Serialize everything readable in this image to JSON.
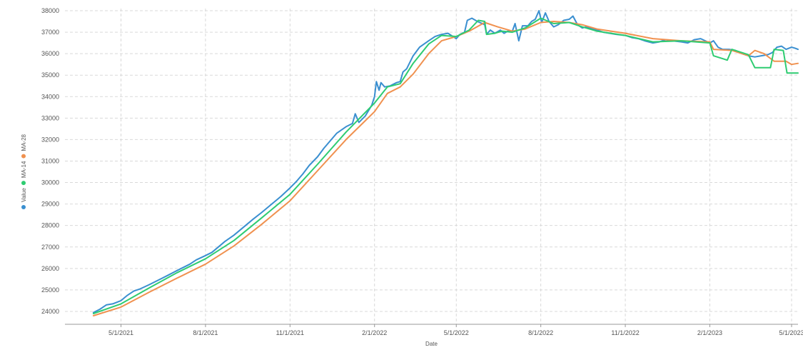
{
  "chart_data": {
    "type": "line",
    "title": "",
    "xlabel": "Date",
    "ylabel": "",
    "x_range": [
      "2021-03-01",
      "2023-05-08"
    ],
    "ylim": [
      23400,
      38100
    ],
    "grid": true,
    "legend_position": "left",
    "x_ticks": [
      {
        "date": "2021-05-01",
        "label": "5/1/2021"
      },
      {
        "date": "2021-08-01",
        "label": "8/1/2021"
      },
      {
        "date": "2021-11-01",
        "label": "11/1/2021"
      },
      {
        "date": "2022-02-01",
        "label": "2/1/2022"
      },
      {
        "date": "2022-05-01",
        "label": "5/1/2022"
      },
      {
        "date": "2022-08-01",
        "label": "8/1/2022"
      },
      {
        "date": "2022-11-01",
        "label": "11/1/2022"
      },
      {
        "date": "2023-02-01",
        "label": "2/1/2023"
      },
      {
        "date": "2023-05-01",
        "label": "5/1/2023"
      }
    ],
    "y_ticks": [
      {
        "value": 24000,
        "label": "24000"
      },
      {
        "value": 25000,
        "label": "25000"
      },
      {
        "value": 26000,
        "label": "26000"
      },
      {
        "value": 27000,
        "label": "27000"
      },
      {
        "value": 28000,
        "label": "28000"
      },
      {
        "value": 29000,
        "label": "29000"
      },
      {
        "value": 30000,
        "label": "30000"
      },
      {
        "value": 31000,
        "label": "31000"
      },
      {
        "value": 32000,
        "label": "32000"
      },
      {
        "value": 33000,
        "label": "33000"
      },
      {
        "value": 34000,
        "label": "34000"
      },
      {
        "value": 35000,
        "label": "35000"
      },
      {
        "value": 36000,
        "label": "36000"
      },
      {
        "value": 37000,
        "label": "37000"
      },
      {
        "value": 38000,
        "label": "38000"
      }
    ],
    "series": [
      {
        "name": "Value",
        "color": "#3a8fd0",
        "points": [
          [
            "2021-04-01",
            23950
          ],
          [
            "2021-04-08",
            24100
          ],
          [
            "2021-04-15",
            24300
          ],
          [
            "2021-04-22",
            24350
          ],
          [
            "2021-05-01",
            24500
          ],
          [
            "2021-05-08",
            24750
          ],
          [
            "2021-05-15",
            24950
          ],
          [
            "2021-05-22",
            25050
          ],
          [
            "2021-06-01",
            25250
          ],
          [
            "2021-06-08",
            25400
          ],
          [
            "2021-06-15",
            25550
          ],
          [
            "2021-06-22",
            25700
          ],
          [
            "2021-07-01",
            25900
          ],
          [
            "2021-07-08",
            26050
          ],
          [
            "2021-07-15",
            26200
          ],
          [
            "2021-07-22",
            26400
          ],
          [
            "2021-08-01",
            26600
          ],
          [
            "2021-08-08",
            26750
          ],
          [
            "2021-08-15",
            27000
          ],
          [
            "2021-08-22",
            27250
          ],
          [
            "2021-09-01",
            27550
          ],
          [
            "2021-09-08",
            27800
          ],
          [
            "2021-09-15",
            28050
          ],
          [
            "2021-09-22",
            28300
          ],
          [
            "2021-10-01",
            28600
          ],
          [
            "2021-10-08",
            28850
          ],
          [
            "2021-10-15",
            29100
          ],
          [
            "2021-10-22",
            29350
          ],
          [
            "2021-11-01",
            29750
          ],
          [
            "2021-11-08",
            30050
          ],
          [
            "2021-11-15",
            30400
          ],
          [
            "2021-11-22",
            30800
          ],
          [
            "2021-12-01",
            31200
          ],
          [
            "2021-12-08",
            31600
          ],
          [
            "2021-12-15",
            31950
          ],
          [
            "2021-12-22",
            32300
          ],
          [
            "2022-01-01",
            32600
          ],
          [
            "2022-01-08",
            32750
          ],
          [
            "2022-01-11",
            33200
          ],
          [
            "2022-01-15",
            32800
          ],
          [
            "2022-01-22",
            33100
          ],
          [
            "2022-01-29",
            33600
          ],
          [
            "2022-02-01",
            34000
          ],
          [
            "2022-02-03",
            34700
          ],
          [
            "2022-02-06",
            34300
          ],
          [
            "2022-02-08",
            34650
          ],
          [
            "2022-02-12",
            34450
          ],
          [
            "2022-02-18",
            34500
          ],
          [
            "2022-02-25",
            34650
          ],
          [
            "2022-03-01",
            34700
          ],
          [
            "2022-03-04",
            35150
          ],
          [
            "2022-03-08",
            35300
          ],
          [
            "2022-03-15",
            35900
          ],
          [
            "2022-03-22",
            36300
          ],
          [
            "2022-04-01",
            36600
          ],
          [
            "2022-04-08",
            36800
          ],
          [
            "2022-04-15",
            36900
          ],
          [
            "2022-04-22",
            36950
          ],
          [
            "2022-05-01",
            36700
          ],
          [
            "2022-05-05",
            36900
          ],
          [
            "2022-05-10",
            37000
          ],
          [
            "2022-05-13",
            37550
          ],
          [
            "2022-05-18",
            37650
          ],
          [
            "2022-05-24",
            37500
          ],
          [
            "2022-06-01",
            37350
          ],
          [
            "2022-06-03",
            36900
          ],
          [
            "2022-06-07",
            37100
          ],
          [
            "2022-06-12",
            36950
          ],
          [
            "2022-06-18",
            37100
          ],
          [
            "2022-06-22",
            36950
          ],
          [
            "2022-06-26",
            37050
          ],
          [
            "2022-07-01",
            37050
          ],
          [
            "2022-07-04",
            37400
          ],
          [
            "2022-07-08",
            36600
          ],
          [
            "2022-07-12",
            37300
          ],
          [
            "2022-07-18",
            37300
          ],
          [
            "2022-07-22",
            37500
          ],
          [
            "2022-07-26",
            37600
          ],
          [
            "2022-07-30",
            38000
          ],
          [
            "2022-08-02",
            37450
          ],
          [
            "2022-08-06",
            37900
          ],
          [
            "2022-08-10",
            37500
          ],
          [
            "2022-08-15",
            37250
          ],
          [
            "2022-08-20",
            37350
          ],
          [
            "2022-08-26",
            37550
          ],
          [
            "2022-09-01",
            37600
          ],
          [
            "2022-09-05",
            37750
          ],
          [
            "2022-09-10",
            37350
          ],
          [
            "2022-09-15",
            37200
          ],
          [
            "2022-09-20",
            37250
          ],
          [
            "2022-09-26",
            37150
          ],
          [
            "2022-10-01",
            37100
          ],
          [
            "2022-10-08",
            37000
          ],
          [
            "2022-10-15",
            36950
          ],
          [
            "2022-10-22",
            36900
          ],
          [
            "2022-11-01",
            36850
          ],
          [
            "2022-11-08",
            36750
          ],
          [
            "2022-11-15",
            36700
          ],
          [
            "2022-11-22",
            36600
          ],
          [
            "2022-12-01",
            36500
          ],
          [
            "2022-12-08",
            36550
          ],
          [
            "2022-12-15",
            36650
          ],
          [
            "2022-12-22",
            36600
          ],
          [
            "2023-01-01",
            36550
          ],
          [
            "2023-01-08",
            36500
          ],
          [
            "2023-01-15",
            36650
          ],
          [
            "2023-01-22",
            36700
          ],
          [
            "2023-02-01",
            36500
          ],
          [
            "2023-02-05",
            36600
          ],
          [
            "2023-02-10",
            36300
          ],
          [
            "2023-02-15",
            36200
          ],
          [
            "2023-02-22",
            36200
          ],
          [
            "2023-03-01",
            36150
          ],
          [
            "2023-03-08",
            36000
          ],
          [
            "2023-03-15",
            35900
          ],
          [
            "2023-03-22",
            35850
          ],
          [
            "2023-03-29",
            35900
          ],
          [
            "2023-04-05",
            35950
          ],
          [
            "2023-04-10",
            36050
          ],
          [
            "2023-04-15",
            36300
          ],
          [
            "2023-04-20",
            36350
          ],
          [
            "2023-04-25",
            36200
          ],
          [
            "2023-05-01",
            36300
          ],
          [
            "2023-05-05",
            36250
          ],
          [
            "2023-05-08",
            36200
          ]
        ]
      },
      {
        "name": "MA-14",
        "color": "#2ecc71",
        "points": [
          [
            "2021-04-01",
            23900
          ],
          [
            "2021-05-01",
            24350
          ],
          [
            "2021-06-01",
            25100
          ],
          [
            "2021-07-01",
            25800
          ],
          [
            "2021-08-01",
            26450
          ],
          [
            "2021-09-01",
            27300
          ],
          [
            "2021-10-01",
            28350
          ],
          [
            "2021-11-01",
            29450
          ],
          [
            "2021-12-01",
            30850
          ],
          [
            "2022-01-01",
            32350
          ],
          [
            "2022-02-01",
            33700
          ],
          [
            "2022-02-15",
            34450
          ],
          [
            "2022-03-01",
            34600
          ],
          [
            "2022-03-15",
            35550
          ],
          [
            "2022-04-01",
            36450
          ],
          [
            "2022-04-15",
            36850
          ],
          [
            "2022-05-01",
            36800
          ],
          [
            "2022-05-15",
            37100
          ],
          [
            "2022-05-25",
            37550
          ],
          [
            "2022-06-01",
            37500
          ],
          [
            "2022-06-03",
            36900
          ],
          [
            "2022-06-12",
            36950
          ],
          [
            "2022-06-20",
            37050
          ],
          [
            "2022-07-01",
            37000
          ],
          [
            "2022-07-15",
            37200
          ],
          [
            "2022-08-01",
            37650
          ],
          [
            "2022-08-15",
            37400
          ],
          [
            "2022-09-01",
            37450
          ],
          [
            "2022-09-15",
            37250
          ],
          [
            "2022-10-01",
            37050
          ],
          [
            "2022-11-01",
            36850
          ],
          [
            "2022-12-01",
            36550
          ],
          [
            "2023-01-01",
            36600
          ],
          [
            "2023-02-01",
            36500
          ],
          [
            "2023-02-05",
            35900
          ],
          [
            "2023-02-20",
            35700
          ],
          [
            "2023-02-25",
            36200
          ],
          [
            "2023-03-15",
            35950
          ],
          [
            "2023-03-22",
            35350
          ],
          [
            "2023-04-08",
            35350
          ],
          [
            "2023-04-12",
            36200
          ],
          [
            "2023-04-22",
            36150
          ],
          [
            "2023-04-26",
            35100
          ],
          [
            "2023-05-08",
            35100
          ]
        ]
      },
      {
        "name": "MA-28",
        "color": "#f0914f",
        "points": [
          [
            "2021-04-01",
            23800
          ],
          [
            "2021-05-01",
            24200
          ],
          [
            "2021-06-01",
            24900
          ],
          [
            "2021-07-01",
            25550
          ],
          [
            "2021-08-01",
            26200
          ],
          [
            "2021-09-01",
            27050
          ],
          [
            "2021-10-01",
            28050
          ],
          [
            "2021-11-01",
            29150
          ],
          [
            "2021-12-01",
            30550
          ],
          [
            "2022-01-01",
            32000
          ],
          [
            "2022-02-01",
            33300
          ],
          [
            "2022-02-15",
            34150
          ],
          [
            "2022-03-01",
            34450
          ],
          [
            "2022-03-15",
            35050
          ],
          [
            "2022-04-01",
            36000
          ],
          [
            "2022-04-15",
            36600
          ],
          [
            "2022-05-01",
            36800
          ],
          [
            "2022-05-15",
            37050
          ],
          [
            "2022-06-01",
            37450
          ],
          [
            "2022-06-15",
            37250
          ],
          [
            "2022-07-01",
            37050
          ],
          [
            "2022-07-15",
            37150
          ],
          [
            "2022-08-01",
            37450
          ],
          [
            "2022-08-15",
            37500
          ],
          [
            "2022-09-01",
            37450
          ],
          [
            "2022-09-15",
            37350
          ],
          [
            "2022-10-01",
            37150
          ],
          [
            "2022-11-01",
            36950
          ],
          [
            "2022-12-01",
            36700
          ],
          [
            "2023-01-01",
            36600
          ],
          [
            "2023-02-01",
            36550
          ],
          [
            "2023-02-05",
            36200
          ],
          [
            "2023-02-25",
            36150
          ],
          [
            "2023-03-15",
            35900
          ],
          [
            "2023-03-22",
            36150
          ],
          [
            "2023-04-01",
            36000
          ],
          [
            "2023-04-12",
            35650
          ],
          [
            "2023-04-25",
            35650
          ],
          [
            "2023-05-01",
            35500
          ],
          [
            "2023-05-08",
            35550
          ]
        ]
      }
    ]
  }
}
